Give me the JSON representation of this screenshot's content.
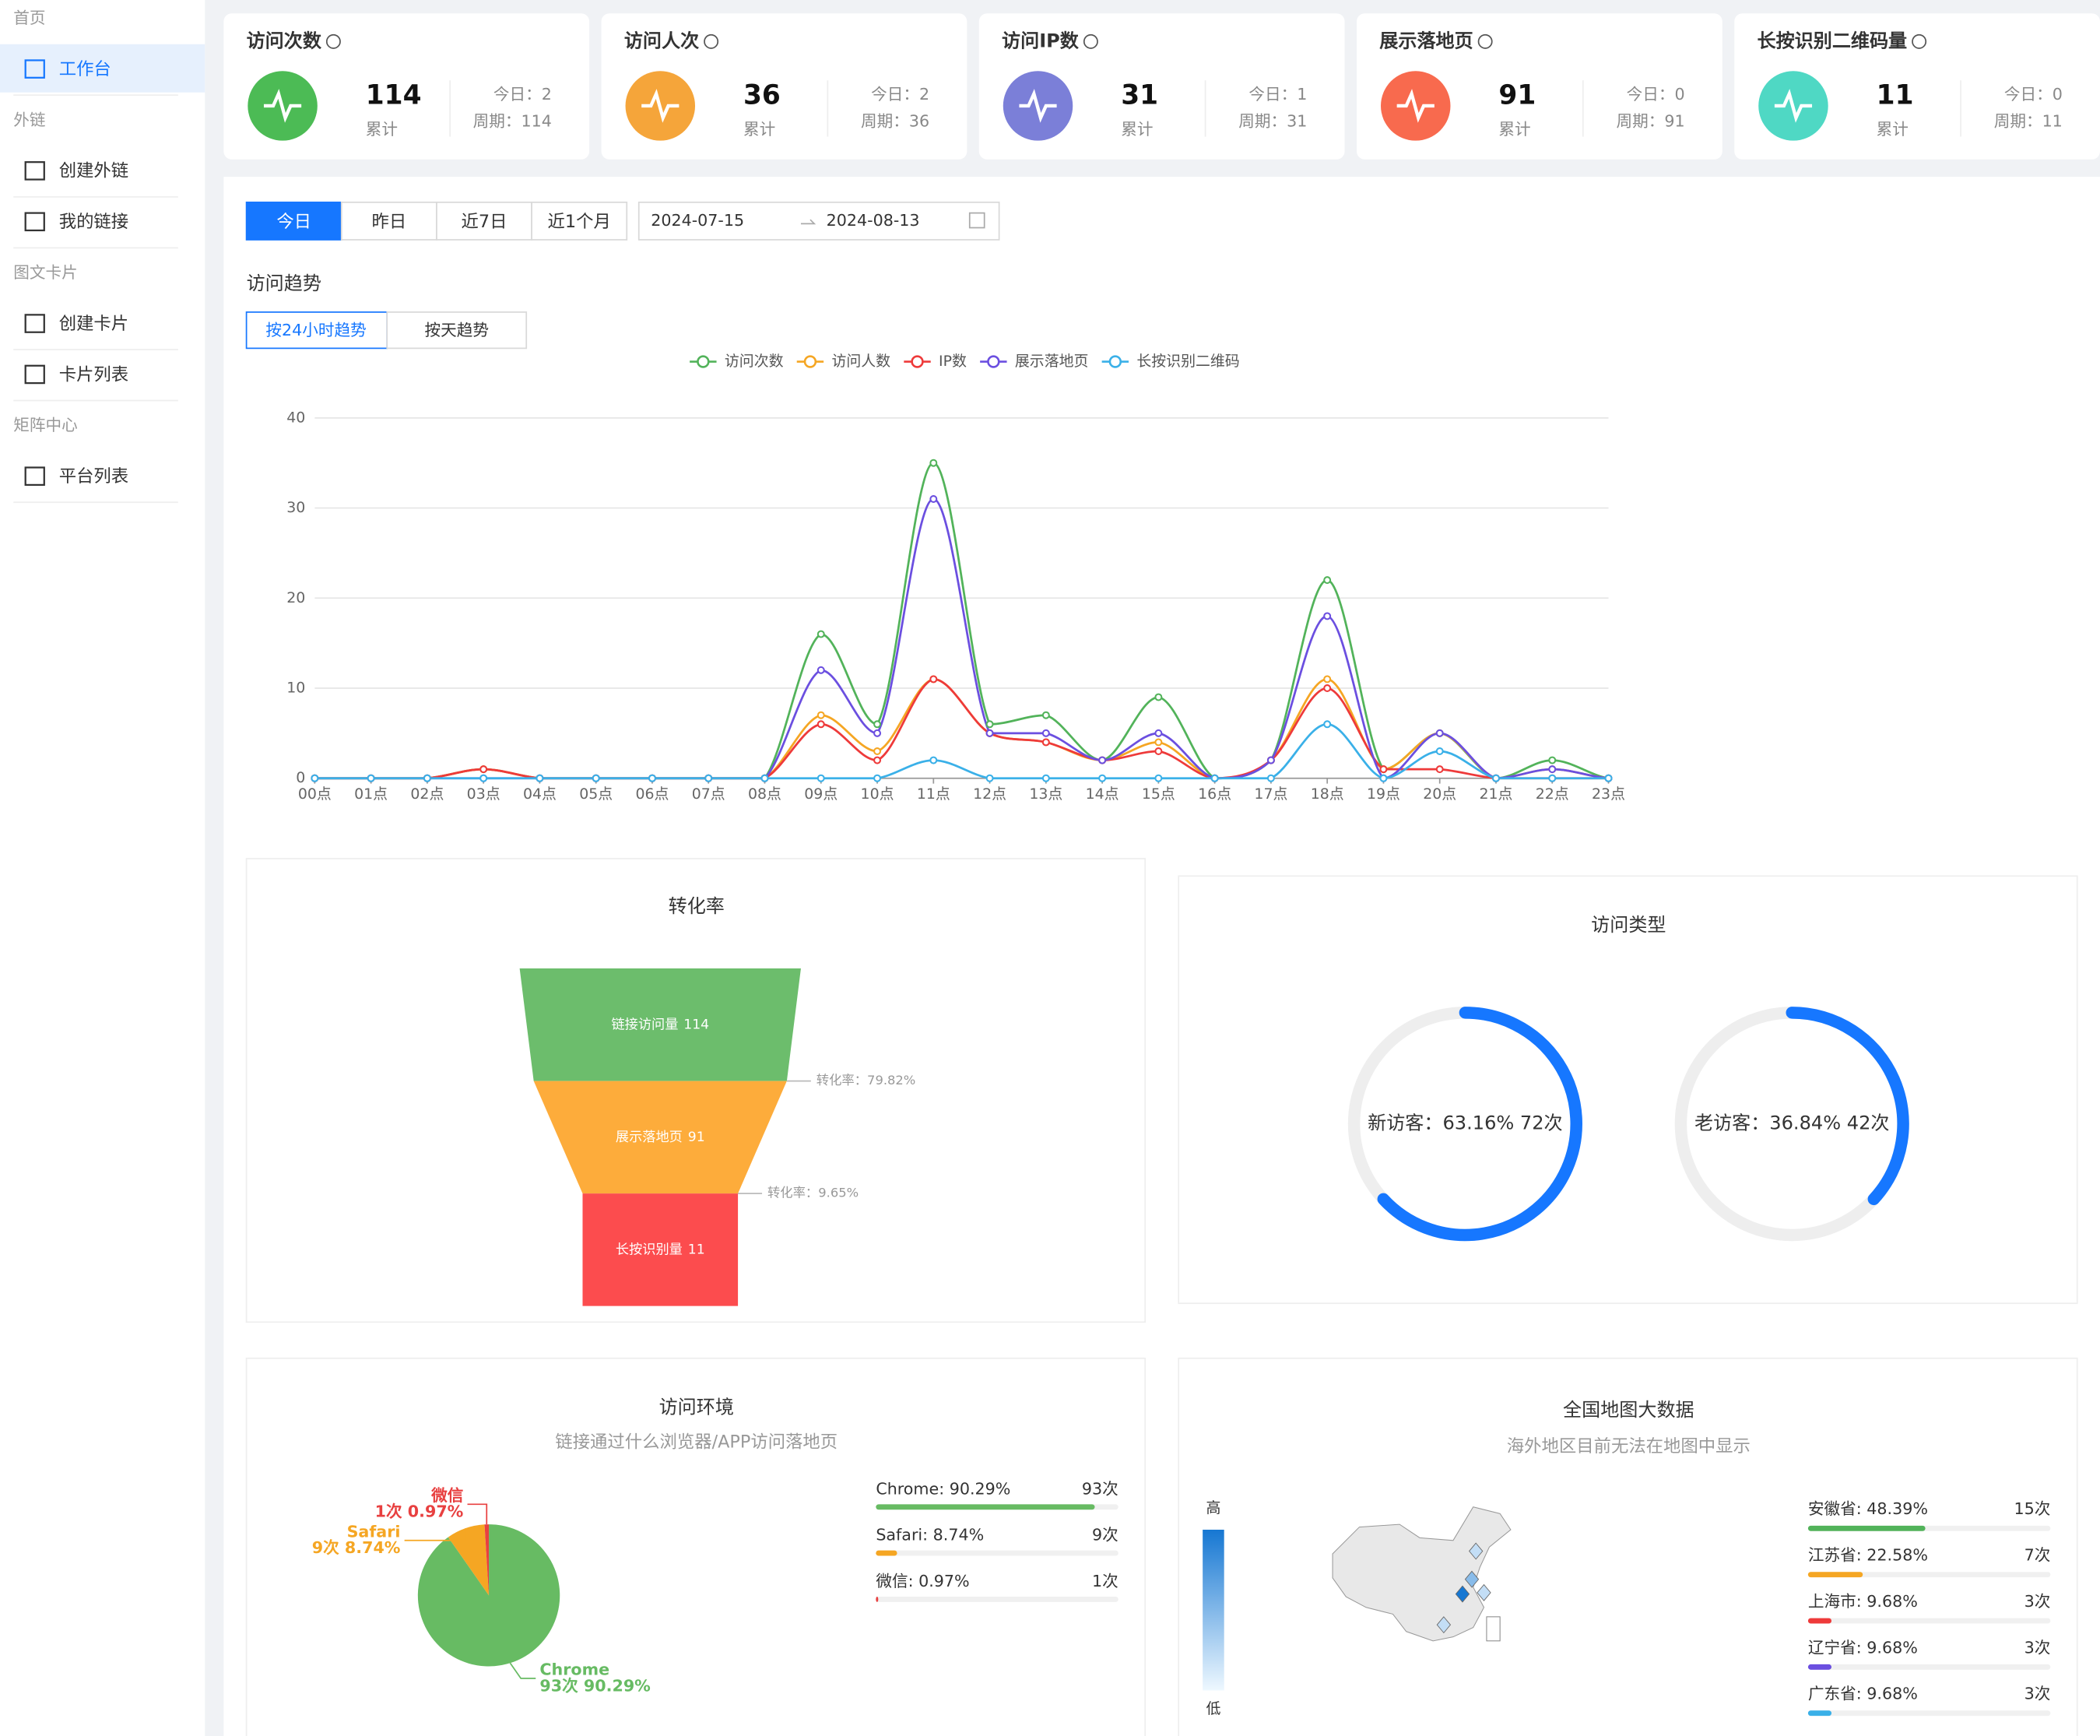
{
  "sidebar": {
    "sections": [
      {
        "title": "首页",
        "items": [
          "工作台"
        ]
      },
      {
        "title": "外链",
        "items": [
          "创建外链",
          "我的链接"
        ]
      },
      {
        "title": "图文卡片",
        "items": [
          "创建卡片",
          "卡片列表"
        ]
      },
      {
        "title": "矩阵中心",
        "items": [
          "平台列表"
        ]
      }
    ]
  },
  "stats": [
    {
      "title": "访问次数",
      "value": "114",
      "total_label": "累计",
      "today": "今日：2",
      "period": "周期：114",
      "color": "#4cbb55"
    },
    {
      "title": "访问人次",
      "value": "36",
      "total_label": "累计",
      "today": "今日：2",
      "period": "周期：36",
      "color": "#f5a53a"
    },
    {
      "title": "访问IP数",
      "value": "31",
      "total_label": "累计",
      "today": "今日：1",
      "period": "周期：31",
      "color": "#7b7fd8"
    },
    {
      "title": "展示落地页",
      "value": "91",
      "total_label": "累计",
      "today": "今日：0",
      "period": "周期：91",
      "color": "#f86a4e"
    },
    {
      "title": "长按识别二维码量",
      "value": "11",
      "total_label": "累计",
      "today": "今日：0",
      "period": "周期：11",
      "color": "#4fd8c4"
    }
  ],
  "filters": {
    "tabs": [
      "今日",
      "昨日",
      "近7日",
      "近1个月"
    ],
    "date_start": "2024-07-15",
    "date_end": "2024-08-13"
  },
  "trend": {
    "title": "访问趋势",
    "tabs": [
      "按24小时趋势",
      "按天趋势"
    ]
  },
  "chart_data": [
    {
      "type": "line",
      "categories": [
        "00点",
        "01点",
        "02点",
        "03点",
        "04点",
        "05点",
        "06点",
        "07点",
        "08点",
        "09点",
        "10点",
        "11点",
        "12点",
        "13点",
        "14点",
        "15点",
        "16点",
        "17点",
        "18点",
        "19点",
        "20点",
        "21点",
        "22点",
        "23点"
      ],
      "series": [
        {
          "name": "访问次数",
          "color": "#52b35a",
          "values": [
            0,
            0,
            0,
            1,
            0,
            0,
            0,
            0,
            0,
            16,
            6,
            35,
            6,
            7,
            2,
            9,
            0,
            2,
            22,
            1,
            5,
            0,
            2,
            0
          ]
        },
        {
          "name": "访问人数",
          "color": "#f5a623",
          "values": [
            0,
            0,
            0,
            1,
            0,
            0,
            0,
            0,
            0,
            7,
            3,
            11,
            5,
            4,
            2,
            4,
            0,
            2,
            11,
            1,
            5,
            0,
            1,
            0
          ]
        },
        {
          "name": "IP数",
          "color": "#ee3a3a",
          "values": [
            0,
            0,
            0,
            1,
            0,
            0,
            0,
            0,
            0,
            6,
            2,
            11,
            5,
            4,
            2,
            3,
            0,
            2,
            10,
            1,
            1,
            0,
            0,
            0
          ]
        },
        {
          "name": "展示落地页",
          "color": "#6b4fe0",
          "values": [
            0,
            0,
            0,
            0,
            0,
            0,
            0,
            0,
            0,
            12,
            5,
            31,
            5,
            5,
            2,
            5,
            0,
            2,
            18,
            0,
            5,
            0,
            1,
            0
          ]
        },
        {
          "name": "长按识别二维码",
          "color": "#3ab0e8",
          "values": [
            0,
            0,
            0,
            0,
            0,
            0,
            0,
            0,
            0,
            0,
            0,
            2,
            0,
            0,
            0,
            0,
            0,
            0,
            6,
            0,
            3,
            0,
            0,
            0
          ]
        }
      ],
      "ylim": [
        0,
        40
      ],
      "yticks": [
        0,
        10,
        20,
        30,
        40
      ],
      "grid": true
    },
    {
      "type": "funnel",
      "title": "转化率",
      "categories": [
        "链接访问量",
        "展示落地页",
        "长按识别量"
      ],
      "values": [
        114,
        91,
        11
      ],
      "colors": [
        "#6cbd6c",
        "#fdac3b",
        "#fc4c4e"
      ],
      "annotations": [
        "转化率：79.82%",
        "转化率：9.65%"
      ]
    },
    {
      "type": "ring",
      "title": "访问类型",
      "categories": [
        "新访客",
        "老访客"
      ],
      "values": [
        63.16,
        36.84
      ],
      "value_labels": [
        "新访客：63.16% 72次",
        "老访客：36.84% 42次"
      ],
      "color": "#1677ff"
    },
    {
      "type": "pie",
      "title": "访问环境",
      "subtitle": "链接通过什么浏览器/APP访问落地页",
      "categories": [
        "Chrome",
        "Safari",
        "微信"
      ],
      "values": [
        90.29,
        8.74,
        0.97
      ],
      "value_labels": [
        "93次 90.29%",
        "9次 8.74%",
        "1次 0.97%"
      ],
      "list_labels": [
        "Chrome: 90.29%",
        "Safari: 8.74%",
        "微信: 0.97%"
      ],
      "count_labels": [
        "93次",
        "9次",
        "1次"
      ],
      "colors": [
        "#67bb63",
        "#f5a623",
        "#e84040"
      ]
    },
    {
      "type": "map",
      "title": "全国地图大数据",
      "subtitle": "海外地区目前无法在地图中显示",
      "visual_map_labels": [
        "高",
        "低"
      ],
      "categories": [
        "安徽省",
        "江苏省",
        "上海市",
        "辽宁省",
        "广东省"
      ],
      "values": [
        48.39,
        22.58,
        9.68,
        9.68,
        9.68
      ],
      "value_labels": [
        "安徽省: 48.39%",
        "江苏省: 22.58%",
        "上海市: 9.68%",
        "辽宁省: 9.68%",
        "广东省: 9.68%"
      ],
      "count_labels": [
        "15次",
        "7次",
        "3次",
        "3次",
        "3次"
      ],
      "colors": [
        "#52b35a",
        "#f5a623",
        "#ee3a3a",
        "#6b4fe0",
        "#3ab0e8"
      ]
    }
  ]
}
